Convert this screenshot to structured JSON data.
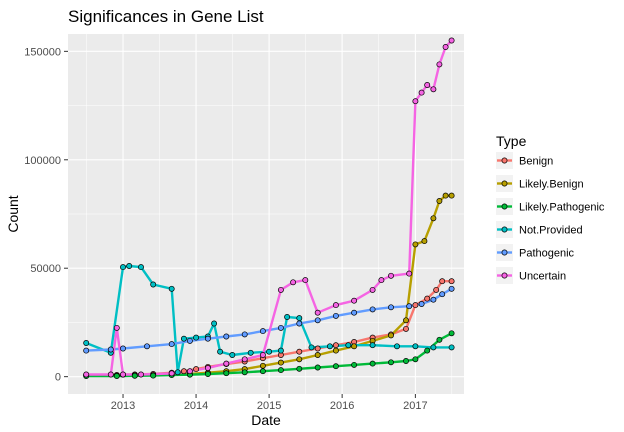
{
  "chart_data": {
    "type": "line",
    "title": "Significances in Gene List",
    "xlabel": "Date",
    "ylabel": "Count",
    "x_ticks": [
      "2013",
      "2014",
      "2015",
      "2016",
      "2017"
    ],
    "y_ticks": [
      "0",
      "50000",
      "100000",
      "150000"
    ],
    "xlim": [
      "2012-04-01",
      "2017-09-01"
    ],
    "ylim": [
      -8000,
      158000
    ],
    "grid": true,
    "legend": {
      "title": "Type",
      "position": "right"
    },
    "series": [
      {
        "name": "Benign",
        "color": "#F8766D",
        "points": [
          [
            "2012-07-01",
            800
          ],
          [
            "2012-12-01",
            800
          ],
          [
            "2013-01-01",
            900
          ],
          [
            "2013-03-01",
            1000
          ],
          [
            "2013-06-01",
            1200
          ],
          [
            "2013-09-01",
            1800
          ],
          [
            "2013-11-01",
            2500
          ],
          [
            "2014-01-01",
            3500
          ],
          [
            "2014-03-01",
            4500
          ],
          [
            "2014-06-01",
            5800
          ],
          [
            "2014-09-01",
            7000
          ],
          [
            "2014-12-01",
            8500
          ],
          [
            "2015-03-01",
            10000
          ],
          [
            "2015-06-01",
            11500
          ],
          [
            "2015-09-01",
            13000
          ],
          [
            "2015-12-01",
            14500
          ],
          [
            "2016-03-01",
            16000
          ],
          [
            "2016-06-01",
            18000
          ],
          [
            "2016-09-01",
            19500
          ],
          [
            "2016-11-15",
            22000
          ],
          [
            "2017-01-01",
            33000
          ],
          [
            "2017-03-01",
            36000
          ],
          [
            "2017-04-15",
            40000
          ],
          [
            "2017-05-15",
            44000
          ],
          [
            "2017-07-01",
            44000
          ]
        ]
      },
      {
        "name": "Likely.Benign",
        "color": "#B79F00",
        "points": [
          [
            "2012-07-01",
            500
          ],
          [
            "2012-12-01",
            500
          ],
          [
            "2013-03-01",
            600
          ],
          [
            "2013-06-01",
            700
          ],
          [
            "2013-09-01",
            900
          ],
          [
            "2013-12-01",
            1200
          ],
          [
            "2014-03-01",
            1800
          ],
          [
            "2014-06-01",
            2500
          ],
          [
            "2014-09-01",
            3500
          ],
          [
            "2014-12-01",
            5000
          ],
          [
            "2015-03-01",
            6500
          ],
          [
            "2015-06-01",
            8000
          ],
          [
            "2015-09-01",
            10000
          ],
          [
            "2015-12-01",
            12000
          ],
          [
            "2016-03-01",
            14000
          ],
          [
            "2016-06-01",
            16500
          ],
          [
            "2016-09-01",
            19000
          ],
          [
            "2016-11-15",
            26000
          ],
          [
            "2017-01-01",
            61000
          ],
          [
            "2017-02-15",
            62500
          ],
          [
            "2017-04-01",
            73000
          ],
          [
            "2017-05-01",
            81000
          ],
          [
            "2017-06-01",
            83500
          ],
          [
            "2017-07-01",
            83500
          ]
        ]
      },
      {
        "name": "Likely.Pathogenic",
        "color": "#00BA38",
        "points": [
          [
            "2012-07-01",
            300
          ],
          [
            "2012-12-01",
            300
          ],
          [
            "2013-03-01",
            400
          ],
          [
            "2013-06-01",
            500
          ],
          [
            "2013-09-01",
            700
          ],
          [
            "2013-12-01",
            900
          ],
          [
            "2014-03-01",
            1200
          ],
          [
            "2014-06-01",
            1600
          ],
          [
            "2014-09-01",
            2000
          ],
          [
            "2014-12-01",
            2500
          ],
          [
            "2015-03-01",
            3000
          ],
          [
            "2015-06-01",
            3600
          ],
          [
            "2015-09-01",
            4200
          ],
          [
            "2015-12-01",
            4800
          ],
          [
            "2016-03-01",
            5400
          ],
          [
            "2016-06-01",
            6000
          ],
          [
            "2016-09-01",
            6600
          ],
          [
            "2016-11-15",
            7200
          ],
          [
            "2017-01-01",
            8000
          ],
          [
            "2017-03-01",
            12000
          ],
          [
            "2017-05-01",
            17000
          ],
          [
            "2017-07-01",
            20000
          ]
        ]
      },
      {
        "name": "Not.Provided",
        "color": "#00BFC4",
        "points": [
          [
            "2012-07-01",
            15500
          ],
          [
            "2012-11-01",
            11000
          ],
          [
            "2013-01-01",
            50500
          ],
          [
            "2013-02-01",
            51000
          ],
          [
            "2013-04-01",
            50500
          ],
          [
            "2013-06-01",
            42500
          ],
          [
            "2013-09-01",
            40500
          ],
          [
            "2013-10-01",
            2000
          ],
          [
            "2013-11-01",
            17500
          ],
          [
            "2014-01-01",
            18000
          ],
          [
            "2014-03-01",
            18500
          ],
          [
            "2014-04-01",
            24500
          ],
          [
            "2014-05-01",
            11500
          ],
          [
            "2014-07-01",
            10000
          ],
          [
            "2014-10-01",
            11000
          ],
          [
            "2015-01-01",
            11500
          ],
          [
            "2015-03-01",
            12000
          ],
          [
            "2015-04-01",
            27500
          ],
          [
            "2015-06-01",
            27000
          ],
          [
            "2015-08-01",
            13500
          ],
          [
            "2015-11-01",
            14000
          ],
          [
            "2016-02-01",
            14500
          ],
          [
            "2016-06-01",
            14500
          ],
          [
            "2016-10-01",
            14000
          ],
          [
            "2017-01-01",
            14000
          ],
          [
            "2017-04-01",
            13500
          ],
          [
            "2017-07-01",
            13500
          ]
        ]
      },
      {
        "name": "Pathogenic",
        "color": "#619CFF",
        "points": [
          [
            "2012-07-01",
            12000
          ],
          [
            "2012-11-01",
            12500
          ],
          [
            "2013-01-01",
            13000
          ],
          [
            "2013-05-01",
            14000
          ],
          [
            "2013-09-01",
            15000
          ],
          [
            "2013-12-01",
            16500
          ],
          [
            "2014-03-01",
            17500
          ],
          [
            "2014-06-01",
            18500
          ],
          [
            "2014-09-01",
            19500
          ],
          [
            "2014-12-01",
            21000
          ],
          [
            "2015-03-01",
            22500
          ],
          [
            "2015-06-01",
            24500
          ],
          [
            "2015-09-01",
            26000
          ],
          [
            "2015-12-01",
            28000
          ],
          [
            "2016-03-01",
            29500
          ],
          [
            "2016-06-01",
            31000
          ],
          [
            "2016-09-01",
            32000
          ],
          [
            "2016-12-01",
            32500
          ],
          [
            "2017-02-01",
            33500
          ],
          [
            "2017-04-01",
            35500
          ],
          [
            "2017-05-15",
            38000
          ],
          [
            "2017-07-01",
            40500
          ]
        ]
      },
      {
        "name": "Uncertain",
        "color": "#F564E3",
        "points": [
          [
            "2012-07-01",
            1000
          ],
          [
            "2012-11-01",
            1000
          ],
          [
            "2012-12-01",
            22500
          ],
          [
            "2013-01-01",
            1000
          ],
          [
            "2013-04-01",
            1000
          ],
          [
            "2013-09-01",
            1500
          ],
          [
            "2013-12-01",
            2500
          ],
          [
            "2014-03-01",
            4000
          ],
          [
            "2014-06-01",
            6000
          ],
          [
            "2014-09-01",
            8000
          ],
          [
            "2014-12-01",
            10000
          ],
          [
            "2015-03-01",
            40000
          ],
          [
            "2015-05-01",
            43500
          ],
          [
            "2015-07-01",
            44500
          ],
          [
            "2015-09-01",
            29500
          ],
          [
            "2015-12-01",
            33000
          ],
          [
            "2016-03-01",
            35000
          ],
          [
            "2016-06-01",
            40000
          ],
          [
            "2016-07-15",
            44500
          ],
          [
            "2016-09-01",
            46500
          ],
          [
            "2016-12-01",
            47500
          ],
          [
            "2017-01-01",
            127000
          ],
          [
            "2017-02-01",
            131000
          ],
          [
            "2017-03-01",
            134500
          ],
          [
            "2017-04-01",
            132500
          ],
          [
            "2017-05-01",
            144000
          ],
          [
            "2017-06-01",
            152000
          ],
          [
            "2017-07-01",
            155000
          ]
        ]
      }
    ]
  }
}
